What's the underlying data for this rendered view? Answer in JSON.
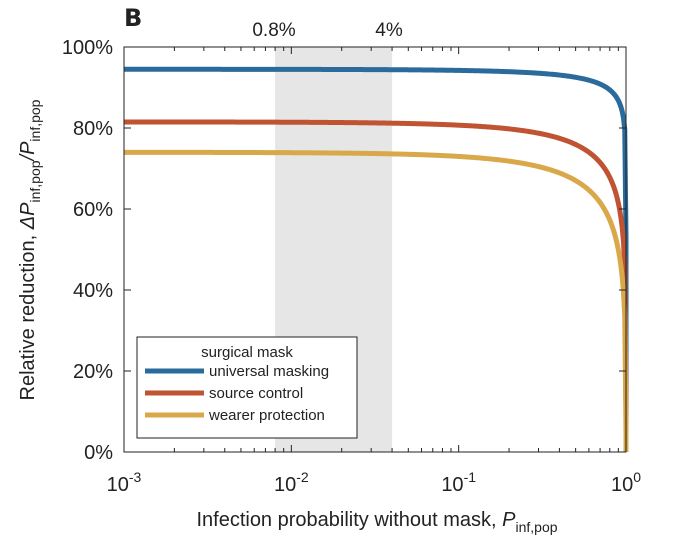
{
  "panel_label": "B",
  "chart_data": {
    "type": "line",
    "xlabel": {
      "text": "Infection probability without mask, ",
      "var": "P",
      "sub": "inf,pop"
    },
    "ylabel": {
      "text": "Relative reduction, ",
      "delta": "ΔP",
      "sub1": "inf,pop",
      "slash": "/P",
      "sub2": "inf,pop"
    },
    "xscale": "log",
    "xlim": [
      0.001,
      1
    ],
    "ylim": [
      0,
      100
    ],
    "xticks": [
      {
        "value": 0.001,
        "base": "10",
        "exp": "-3"
      },
      {
        "value": 0.01,
        "base": "10",
        "exp": "-2"
      },
      {
        "value": 0.1,
        "base": "10",
        "exp": "-1"
      },
      {
        "value": 1,
        "base": "10",
        "exp": "0"
      }
    ],
    "yticks": [
      {
        "value": 0,
        "label": "0%"
      },
      {
        "value": 20,
        "label": "20%"
      },
      {
        "value": 40,
        "label": "40%"
      },
      {
        "value": 60,
        "label": "60%"
      },
      {
        "value": 80,
        "label": "80%"
      },
      {
        "value": 100,
        "label": "100%"
      }
    ],
    "highlight": {
      "x0": 0.008,
      "x1": 0.04,
      "label0": "0.8%",
      "label1": "4%",
      "color": "#e6e6e6"
    },
    "legend": {
      "title": "surgical mask",
      "placement": "bottom-left"
    },
    "series": [
      {
        "name": "universal masking",
        "color": "#2a6b9c",
        "eta": 0.945
      },
      {
        "name": "source control",
        "color": "#bf5332",
        "eta": 0.815
      },
      {
        "name": "wearer protection",
        "color": "#d9a84a",
        "eta": 0.74
      }
    ],
    "grid": false
  }
}
